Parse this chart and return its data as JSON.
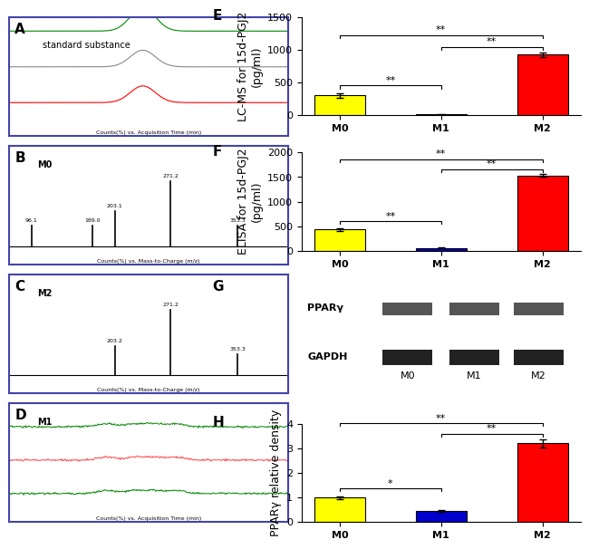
{
  "E": {
    "categories": [
      "M0",
      "M1",
      "M2"
    ],
    "values": [
      300,
      10,
      920
    ],
    "errors": [
      30,
      5,
      30
    ],
    "colors": [
      "#FFFF00",
      "#FFFFFF",
      "#FF0000"
    ],
    "ylabel": "LC-MS for 15d-PGJ2\n(pg/ml)",
    "ylim": [
      0,
      1500
    ],
    "yticks": [
      0,
      500,
      1000,
      1500
    ]
  },
  "F": {
    "categories": [
      "M0",
      "M1",
      "M2"
    ],
    "values": [
      430,
      60,
      1530
    ],
    "errors": [
      30,
      10,
      30
    ],
    "colors": [
      "#FFFF00",
      "#0000CC",
      "#FF0000"
    ],
    "ylabel": "ELISA for 15d-PGJ2\n(pg/ml)",
    "ylim": [
      0,
      2000
    ],
    "yticks": [
      0,
      500,
      1000,
      1500,
      2000
    ]
  },
  "H": {
    "categories": [
      "M0",
      "M1",
      "M2"
    ],
    "values": [
      1.0,
      0.45,
      3.2
    ],
    "errors": [
      0.05,
      0.04,
      0.15
    ],
    "colors": [
      "#FFFF00",
      "#0000CC",
      "#FF0000"
    ],
    "ylabel": "PPARγ relative density",
    "ylim": [
      0,
      4
    ],
    "yticks": [
      0,
      1,
      2,
      3,
      4
    ]
  },
  "label_fontsize": 9,
  "tick_fontsize": 8,
  "panel_label_fontsize": 11,
  "spine_color": "#4444AA",
  "left_panel_labels": [
    "A",
    "B",
    "C",
    "D"
  ],
  "right_panel_labels": [
    "E",
    "F",
    "G",
    "H"
  ]
}
